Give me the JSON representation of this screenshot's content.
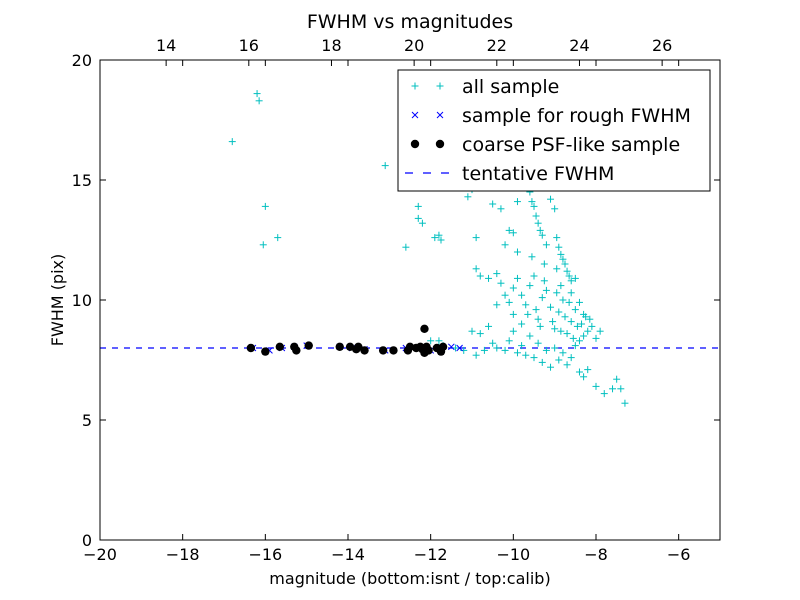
{
  "chart_data": {
    "type": "scatter",
    "title": "FWHM vs magnitudes",
    "xlabel": "magnitude (bottom:isnt / top:calib)",
    "ylabel": "FWHM (pix)",
    "xlim": [
      -20,
      -5
    ],
    "ylim": [
      0,
      20
    ],
    "x_ticks": [
      "−20",
      "−18",
      "−16",
      "−14",
      "−12",
      "−10",
      "−8",
      "−6"
    ],
    "y_ticks": [
      "0",
      "5",
      "10",
      "15",
      "20"
    ],
    "top_axis": {
      "offset": 32.4,
      "ticks": [
        "14",
        "16",
        "18",
        "20",
        "22",
        "24",
        "26"
      ]
    },
    "grid": false,
    "legend_position": "top-right",
    "series": [
      {
        "name": "all sample",
        "marker": "plus",
        "color": "#00bfbf",
        "points": [
          [
            -16.8,
            16.6
          ],
          [
            -16.2,
            18.6
          ],
          [
            -16.15,
            18.3
          ],
          [
            -16.0,
            13.9
          ],
          [
            -16.05,
            12.3
          ],
          [
            -15.7,
            12.6
          ],
          [
            -13.1,
            15.6
          ],
          [
            -12.6,
            12.2
          ],
          [
            -12.3,
            13.9
          ],
          [
            -12.3,
            13.4
          ],
          [
            -12.2,
            13.2
          ],
          [
            -11.9,
            12.6
          ],
          [
            -11.8,
            12.7
          ],
          [
            -11.75,
            12.5
          ],
          [
            -11.1,
            14.3
          ],
          [
            -11.0,
            14.6
          ],
          [
            -10.9,
            12.6
          ],
          [
            -10.7,
            14.7
          ],
          [
            -10.5,
            14.0
          ],
          [
            -10.3,
            13.8
          ],
          [
            -10.2,
            12.3
          ],
          [
            -10.1,
            12.9
          ],
          [
            -10.0,
            12.8
          ],
          [
            -9.9,
            12.0
          ],
          [
            -9.7,
            15.3
          ],
          [
            -9.6,
            14.5
          ],
          [
            -9.55,
            14.1
          ],
          [
            -9.5,
            13.9
          ],
          [
            -9.45,
            13.5
          ],
          [
            -9.4,
            13.2
          ],
          [
            -9.35,
            12.9
          ],
          [
            -9.3,
            12.7
          ],
          [
            -9.2,
            12.3
          ],
          [
            -9.15,
            14.8
          ],
          [
            -9.1,
            14.2
          ],
          [
            -9.0,
            13.8
          ],
          [
            -8.95,
            12.6
          ],
          [
            -8.9,
            12.2
          ],
          [
            -8.85,
            11.9
          ],
          [
            -8.8,
            11.7
          ],
          [
            -8.75,
            11.5
          ],
          [
            -8.7,
            11.2
          ],
          [
            -8.65,
            11.0
          ],
          [
            -8.6,
            10.8
          ],
          [
            -10.9,
            11.3
          ],
          [
            -10.8,
            11.0
          ],
          [
            -10.6,
            10.9
          ],
          [
            -10.4,
            11.1
          ],
          [
            -10.3,
            10.7
          ],
          [
            -10.2,
            10.2
          ],
          [
            -10.1,
            9.9
          ],
          [
            -10.0,
            10.5
          ],
          [
            -9.9,
            10.9
          ],
          [
            -9.8,
            10.2
          ],
          [
            -9.7,
            9.8
          ],
          [
            -9.65,
            9.4
          ],
          [
            -9.6,
            10.6
          ],
          [
            -9.5,
            11.0
          ],
          [
            -9.45,
            9.6
          ],
          [
            -9.4,
            9.2
          ],
          [
            -9.35,
            8.9
          ],
          [
            -9.3,
            10.1
          ],
          [
            -9.25,
            11.5
          ],
          [
            -9.2,
            10.4
          ],
          [
            -9.1,
            9.7
          ],
          [
            -9.05,
            9.1
          ],
          [
            -9.0,
            8.8
          ],
          [
            -8.95,
            10.3
          ],
          [
            -8.9,
            9.5
          ],
          [
            -8.85,
            8.7
          ],
          [
            -8.8,
            10.0
          ],
          [
            -8.75,
            9.3
          ],
          [
            -8.7,
            8.6
          ],
          [
            -8.65,
            9.9
          ],
          [
            -8.6,
            9.1
          ],
          [
            -8.55,
            8.4
          ],
          [
            -8.5,
            9.6
          ],
          [
            -8.45,
            8.9
          ],
          [
            -8.4,
            8.3
          ],
          [
            -8.35,
            9.0
          ],
          [
            -8.3,
            8.5
          ],
          [
            -8.25,
            9.3
          ],
          [
            -8.2,
            8.7
          ],
          [
            -8.1,
            8.9
          ],
          [
            -8.0,
            8.4
          ],
          [
            -10.8,
            8.6
          ],
          [
            -10.6,
            8.9
          ],
          [
            -10.5,
            8.2
          ],
          [
            -10.4,
            8.0
          ],
          [
            -10.2,
            7.9
          ],
          [
            -10.1,
            8.3
          ],
          [
            -10.0,
            8.7
          ],
          [
            -9.9,
            7.8
          ],
          [
            -9.8,
            8.1
          ],
          [
            -9.7,
            7.7
          ],
          [
            -9.6,
            8.5
          ],
          [
            -9.5,
            7.6
          ],
          [
            -9.4,
            8.2
          ],
          [
            -9.3,
            7.4
          ],
          [
            -9.2,
            7.9
          ],
          [
            -9.1,
            7.2
          ],
          [
            -9.0,
            8.0
          ],
          [
            -8.9,
            7.5
          ],
          [
            -8.8,
            7.8
          ],
          [
            -8.7,
            7.3
          ],
          [
            -8.6,
            7.6
          ],
          [
            -8.5,
            8.1
          ],
          [
            -8.4,
            7.0
          ],
          [
            -8.3,
            6.8
          ],
          [
            -8.2,
            7.1
          ],
          [
            -8.0,
            6.4
          ],
          [
            -7.8,
            6.1
          ],
          [
            -7.6,
            6.3
          ],
          [
            -7.5,
            6.7
          ],
          [
            -7.4,
            6.3
          ],
          [
            -7.3,
            5.7
          ],
          [
            -11.7,
            8.1
          ],
          [
            -11.4,
            8.0
          ],
          [
            -11.2,
            7.9
          ],
          [
            -11.0,
            8.7
          ],
          [
            -10.9,
            7.7
          ],
          [
            -10.7,
            7.9
          ],
          [
            -12.0,
            8.3
          ],
          [
            -11.8,
            8.3
          ],
          [
            -9.9,
            14.1
          ],
          [
            -10.4,
            9.8
          ],
          [
            -10.0,
            9.4
          ],
          [
            -9.8,
            9.0
          ],
          [
            -9.55,
            11.8
          ],
          [
            -9.25,
            10.8
          ],
          [
            -8.95,
            11.3
          ],
          [
            -8.85,
            10.6
          ],
          [
            -8.6,
            10.3
          ],
          [
            -8.5,
            10.9
          ],
          [
            -8.4,
            9.9
          ],
          [
            -8.3,
            9.4
          ],
          [
            -8.15,
            9.2
          ],
          [
            -7.9,
            8.7
          ]
        ]
      },
      {
        "name": "sample for rough FWHM",
        "marker": "x",
        "color": "#0000ff",
        "points": [
          [
            -16.3,
            8.0
          ],
          [
            -15.9,
            7.9
          ],
          [
            -15.6,
            8.0
          ],
          [
            -15.3,
            8.05
          ],
          [
            -15.0,
            8.1
          ],
          [
            -14.2,
            8.05
          ],
          [
            -13.9,
            8.0
          ],
          [
            -13.6,
            7.95
          ],
          [
            -13.1,
            7.9
          ],
          [
            -12.6,
            8.0
          ],
          [
            -12.2,
            8.0
          ],
          [
            -12.0,
            7.9
          ],
          [
            -11.8,
            8.0
          ],
          [
            -11.5,
            8.05
          ],
          [
            -11.3,
            8.0
          ]
        ]
      },
      {
        "name": "coarse PSF-like sample",
        "marker": "dot",
        "color": "#000000",
        "points": [
          [
            -16.35,
            8.0
          ],
          [
            -16.0,
            7.85
          ],
          [
            -15.65,
            8.05
          ],
          [
            -15.3,
            8.05
          ],
          [
            -15.25,
            7.9
          ],
          [
            -14.95,
            8.1
          ],
          [
            -14.2,
            8.05
          ],
          [
            -13.95,
            8.05
          ],
          [
            -13.8,
            7.95
          ],
          [
            -13.75,
            8.05
          ],
          [
            -13.6,
            7.9
          ],
          [
            -13.15,
            7.9
          ],
          [
            -12.9,
            7.9
          ],
          [
            -12.55,
            7.9
          ],
          [
            -12.5,
            8.05
          ],
          [
            -12.35,
            8.0
          ],
          [
            -12.25,
            8.05
          ],
          [
            -12.2,
            7.95
          ],
          [
            -12.15,
            8.8
          ],
          [
            -12.15,
            7.8
          ],
          [
            -12.1,
            8.05
          ],
          [
            -12.05,
            7.9
          ],
          [
            -11.85,
            8.0
          ],
          [
            -11.75,
            7.85
          ],
          [
            -11.7,
            8.05
          ]
        ]
      }
    ],
    "reference_line": {
      "name": "tentative FWHM",
      "y": 8.0,
      "style": "dashed",
      "color": "#0000ff"
    }
  }
}
